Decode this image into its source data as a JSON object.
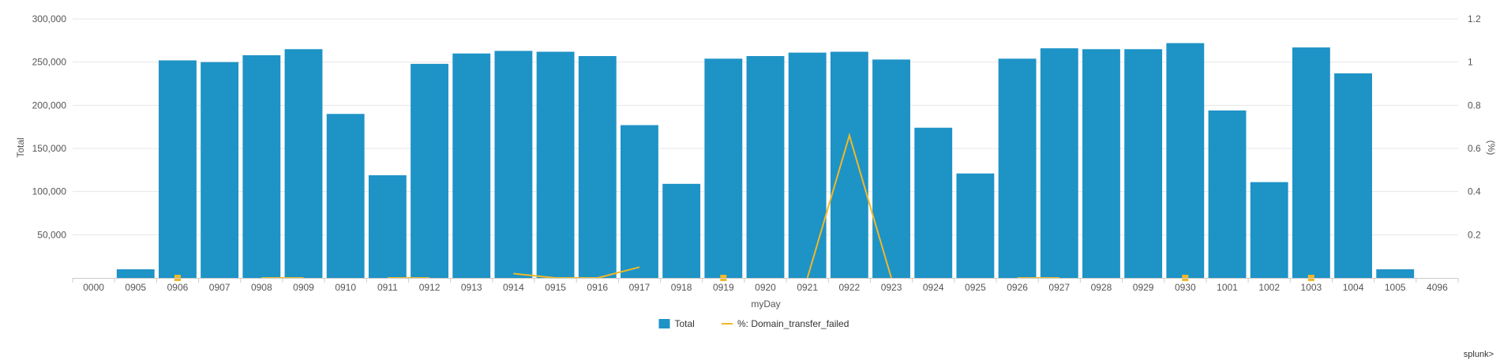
{
  "chart_data": {
    "type": "bar",
    "xlabel": "myDay",
    "ylabel": "Total",
    "y2label": "(%)",
    "ylim": [
      0,
      300000
    ],
    "y2lim": [
      0,
      1.2
    ],
    "yticks": [
      50000,
      100000,
      150000,
      200000,
      250000,
      300000
    ],
    "ytick_labels": [
      "50,000",
      "100,000",
      "150,000",
      "200,000",
      "250,000",
      "300,000"
    ],
    "y2ticks": [
      0.2,
      0.4,
      0.6,
      0.8,
      1,
      1.2
    ],
    "y2tick_labels": [
      "0.2",
      "0.4",
      "0.6",
      "0.8",
      "1",
      "1.2"
    ],
    "categories": [
      "0000",
      "0905",
      "0906",
      "0907",
      "0908",
      "0909",
      "0910",
      "0911",
      "0912",
      "0913",
      "0914",
      "0915",
      "0916",
      "0917",
      "0918",
      "0919",
      "0920",
      "0921",
      "0922",
      "0923",
      "0924",
      "0925",
      "0926",
      "0927",
      "0928",
      "0929",
      "0930",
      "1001",
      "1002",
      "1003",
      "1004",
      "1005",
      "4096"
    ],
    "grid": true,
    "legend_position": "bottom",
    "series": [
      {
        "name": "Total",
        "kind": "bar",
        "axis": "left",
        "color": "#1e93c6",
        "values": [
          0,
          10000,
          252000,
          250000,
          258000,
          265000,
          190000,
          119000,
          248000,
          260000,
          263000,
          262000,
          257000,
          177000,
          109000,
          254000,
          257000,
          261000,
          262000,
          253000,
          174000,
          121000,
          254000,
          266000,
          265000,
          265000,
          272000,
          194000,
          111000,
          267000,
          237000,
          10000,
          0
        ]
      },
      {
        "name": "%: Domain_transfer_failed",
        "kind": "line",
        "axis": "right",
        "color": "#f2b827",
        "values": [
          null,
          null,
          0,
          null,
          0,
          0,
          null,
          0,
          0,
          null,
          0.02,
          0,
          0,
          0.05,
          null,
          0,
          null,
          0,
          0.66,
          0,
          null,
          null,
          0,
          0,
          null,
          null,
          0,
          null,
          null,
          0,
          null,
          null,
          null
        ]
      }
    ]
  },
  "legend": {
    "items": [
      {
        "label": "Total",
        "color": "#1e93c6",
        "kind": "bar"
      },
      {
        "label": "%: Domain_transfer_failed",
        "color": "#f2b827",
        "kind": "line"
      }
    ]
  },
  "branding": {
    "text": "splunk>"
  }
}
